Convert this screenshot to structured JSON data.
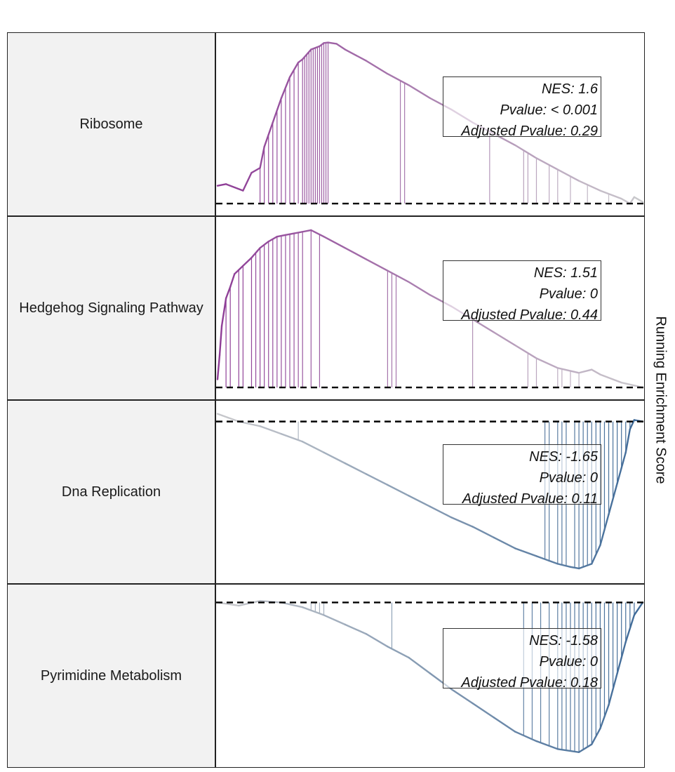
{
  "chart_data": {
    "type": "line",
    "ylabel": "Running Enrichment Score",
    "colors": {
      "positive_enrichment": "#8e3c96",
      "negative_enrichment": "#3f6a98",
      "neutral": "#c9c9cc",
      "baseline": "#000000",
      "panel_label_background": "#f2f2f2"
    },
    "x_range": [
      0,
      1
    ],
    "panels": [
      {
        "pathway": "Ribosome",
        "nes_text": "NES: 1.6",
        "pvalue_text": "Pvalue: < 0.001",
        "adj_pvalue_text": "Adjusted Pvalue: 0.29",
        "direction": "up",
        "y_range": [
          -0.03,
          1.0
        ],
        "curve": [
          [
            0,
            0.11
          ],
          [
            0.02,
            0.12
          ],
          [
            0.06,
            0.08
          ],
          [
            0.08,
            0.19
          ],
          [
            0.1,
            0.22
          ],
          [
            0.11,
            0.35
          ],
          [
            0.13,
            0.5
          ],
          [
            0.15,
            0.65
          ],
          [
            0.17,
            0.78
          ],
          [
            0.19,
            0.87
          ],
          [
            0.2,
            0.89
          ],
          [
            0.22,
            0.95
          ],
          [
            0.24,
            0.97
          ],
          [
            0.25,
            0.99
          ],
          [
            0.26,
            0.993
          ],
          [
            0.28,
            0.985
          ],
          [
            0.3,
            0.95
          ],
          [
            0.35,
            0.88
          ],
          [
            0.4,
            0.8
          ],
          [
            0.45,
            0.73
          ],
          [
            0.5,
            0.65
          ],
          [
            0.55,
            0.58
          ],
          [
            0.6,
            0.5
          ],
          [
            0.65,
            0.43
          ],
          [
            0.7,
            0.36
          ],
          [
            0.75,
            0.28
          ],
          [
            0.8,
            0.21
          ],
          [
            0.85,
            0.14
          ],
          [
            0.9,
            0.08
          ],
          [
            0.95,
            0.03
          ],
          [
            0.97,
            0.0
          ],
          [
            0.98,
            0.04
          ],
          [
            1.0,
            0.01
          ]
        ],
        "hit_positions": [
          0.1,
          0.11,
          0.12,
          0.13,
          0.14,
          0.15,
          0.16,
          0.17,
          0.18,
          0.19,
          0.2,
          0.205,
          0.21,
          0.215,
          0.22,
          0.225,
          0.23,
          0.235,
          0.24,
          0.245,
          0.25,
          0.255,
          0.26,
          0.43,
          0.44,
          0.64,
          0.72,
          0.73,
          0.75,
          0.78,
          0.8,
          0.83,
          0.87,
          0.92
        ]
      },
      {
        "pathway": "Hedgehog Signaling Pathway",
        "nes_text": "NES: 1.51",
        "pvalue_text": "Pvalue: 0",
        "adj_pvalue_text": "Adjusted Pvalue: 0.44",
        "direction": "up",
        "y_range": [
          -0.03,
          1.0
        ],
        "curve": [
          [
            0,
            0.05
          ],
          [
            0.005,
            0.2
          ],
          [
            0.01,
            0.38
          ],
          [
            0.02,
            0.55
          ],
          [
            0.03,
            0.62
          ],
          [
            0.04,
            0.7
          ],
          [
            0.06,
            0.75
          ],
          [
            0.08,
            0.8
          ],
          [
            0.1,
            0.86
          ],
          [
            0.12,
            0.9
          ],
          [
            0.14,
            0.93
          ],
          [
            0.16,
            0.94
          ],
          [
            0.18,
            0.95
          ],
          [
            0.2,
            0.96
          ],
          [
            0.22,
            0.97
          ],
          [
            0.25,
            0.93
          ],
          [
            0.3,
            0.86
          ],
          [
            0.35,
            0.79
          ],
          [
            0.4,
            0.72
          ],
          [
            0.45,
            0.65
          ],
          [
            0.5,
            0.57
          ],
          [
            0.55,
            0.5
          ],
          [
            0.6,
            0.42
          ],
          [
            0.65,
            0.34
          ],
          [
            0.7,
            0.26
          ],
          [
            0.75,
            0.18
          ],
          [
            0.8,
            0.12
          ],
          [
            0.85,
            0.09
          ],
          [
            0.88,
            0.11
          ],
          [
            0.9,
            0.08
          ],
          [
            0.95,
            0.03
          ],
          [
            1.0,
            0.0
          ]
        ],
        "hit_positions": [
          0.02,
          0.03,
          0.05,
          0.06,
          0.08,
          0.09,
          0.1,
          0.11,
          0.12,
          0.13,
          0.14,
          0.15,
          0.16,
          0.17,
          0.18,
          0.19,
          0.2,
          0.22,
          0.24,
          0.4,
          0.41,
          0.42,
          0.6,
          0.73,
          0.75,
          0.8,
          0.81,
          0.83,
          0.85
        ]
      },
      {
        "pathway": "Dna Replication",
        "nes_text": "NES: -1.65",
        "pvalue_text": "Pvalue: 0",
        "adj_pvalue_text": "Adjusted Pvalue: 0.11",
        "direction": "down",
        "y_range": [
          -1.0,
          0.08
        ],
        "curve": [
          [
            0,
            0.05
          ],
          [
            0.05,
            0.0
          ],
          [
            0.1,
            -0.03
          ],
          [
            0.15,
            -0.08
          ],
          [
            0.2,
            -0.13
          ],
          [
            0.25,
            -0.2
          ],
          [
            0.3,
            -0.27
          ],
          [
            0.35,
            -0.34
          ],
          [
            0.4,
            -0.41
          ],
          [
            0.45,
            -0.48
          ],
          [
            0.5,
            -0.55
          ],
          [
            0.55,
            -0.62
          ],
          [
            0.6,
            -0.68
          ],
          [
            0.65,
            -0.75
          ],
          [
            0.7,
            -0.82
          ],
          [
            0.75,
            -0.87
          ],
          [
            0.78,
            -0.9
          ],
          [
            0.8,
            -0.92
          ],
          [
            0.83,
            -0.94
          ],
          [
            0.85,
            -0.95
          ],
          [
            0.88,
            -0.92
          ],
          [
            0.9,
            -0.8
          ],
          [
            0.92,
            -0.6
          ],
          [
            0.94,
            -0.4
          ],
          [
            0.96,
            -0.2
          ],
          [
            0.97,
            -0.05
          ],
          [
            0.98,
            0.01
          ],
          [
            1.0,
            0.0
          ]
        ],
        "hit_positions": [
          0.19,
          0.77,
          0.78,
          0.8,
          0.81,
          0.82,
          0.84,
          0.85,
          0.86,
          0.87,
          0.88,
          0.89,
          0.9,
          0.91,
          0.92,
          0.93,
          0.94,
          0.95,
          0.96,
          0.97
        ]
      },
      {
        "pathway": "Pyrimidine Metabolism",
        "nes_text": "NES: -1.58",
        "pvalue_text": "Pvalue: 0",
        "adj_pvalue_text": "Adjusted Pvalue: 0.18",
        "direction": "down",
        "y_range": [
          -1.0,
          0.06
        ],
        "curve": [
          [
            0,
            0.0
          ],
          [
            0.05,
            -0.02
          ],
          [
            0.1,
            0.01
          ],
          [
            0.15,
            0.0
          ],
          [
            0.2,
            -0.03
          ],
          [
            0.25,
            -0.08
          ],
          [
            0.3,
            -0.14
          ],
          [
            0.35,
            -0.2
          ],
          [
            0.4,
            -0.28
          ],
          [
            0.45,
            -0.35
          ],
          [
            0.5,
            -0.45
          ],
          [
            0.55,
            -0.55
          ],
          [
            0.6,
            -0.64
          ],
          [
            0.65,
            -0.73
          ],
          [
            0.7,
            -0.82
          ],
          [
            0.75,
            -0.88
          ],
          [
            0.8,
            -0.93
          ],
          [
            0.85,
            -0.95
          ],
          [
            0.88,
            -0.9
          ],
          [
            0.9,
            -0.8
          ],
          [
            0.92,
            -0.65
          ],
          [
            0.94,
            -0.45
          ],
          [
            0.96,
            -0.25
          ],
          [
            0.98,
            -0.08
          ],
          [
            1.0,
            0.0
          ]
        ],
        "hit_positions": [
          0.07,
          0.1,
          0.12,
          0.14,
          0.22,
          0.23,
          0.24,
          0.25,
          0.41,
          0.72,
          0.74,
          0.76,
          0.78,
          0.8,
          0.81,
          0.82,
          0.83,
          0.84,
          0.85,
          0.86,
          0.87,
          0.88,
          0.89,
          0.9,
          0.91,
          0.92,
          0.93,
          0.94,
          0.95,
          0.96,
          0.97,
          0.98
        ]
      }
    ]
  }
}
